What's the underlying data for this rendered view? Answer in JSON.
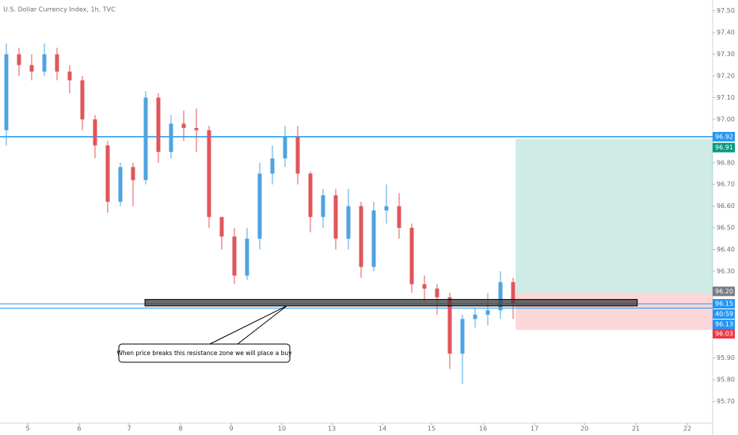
{
  "chart_data": {
    "type": "candlestick",
    "title": "U.S. Dollar Currency Index, 1h, TVC",
    "up_color": "#4fa3e0",
    "down_color": "#e0565b",
    "candles": {
      "open": [
        96.95,
        97.3,
        97.25,
        97.22,
        97.3,
        97.22,
        97.18,
        97.0,
        96.88,
        96.62,
        96.78,
        96.72,
        97.1,
        96.85,
        96.98,
        96.96,
        96.95,
        96.55,
        96.46,
        96.28,
        96.45,
        96.75,
        96.82,
        96.92,
        96.75,
        96.55,
        96.65,
        96.45,
        96.6,
        96.32,
        96.58,
        96.6,
        96.5,
        96.24,
        96.22,
        96.18,
        95.92,
        96.08,
        96.1,
        96.12,
        96.25
      ],
      "high": [
        97.35,
        97.33,
        97.3,
        97.35,
        97.33,
        97.25,
        97.2,
        97.02,
        96.9,
        96.8,
        96.8,
        97.13,
        97.12,
        97.02,
        97.04,
        97.05,
        96.97,
        96.55,
        96.5,
        96.5,
        96.8,
        96.88,
        96.97,
        96.97,
        96.76,
        96.68,
        96.68,
        96.68,
        96.62,
        96.62,
        96.7,
        96.66,
        96.52,
        96.28,
        96.24,
        96.2,
        96.1,
        96.13,
        96.2,
        96.3,
        96.27
      ],
      "low": [
        96.88,
        97.2,
        97.18,
        97.2,
        97.18,
        97.12,
        96.95,
        96.82,
        96.57,
        96.6,
        96.6,
        96.7,
        96.8,
        96.82,
        96.9,
        96.85,
        96.5,
        96.4,
        96.24,
        96.26,
        96.4,
        96.7,
        96.78,
        96.7,
        96.48,
        96.5,
        96.4,
        96.4,
        96.27,
        96.3,
        96.52,
        96.45,
        96.2,
        96.16,
        96.1,
        95.85,
        95.78,
        96.04,
        96.05,
        96.08,
        96.08
      ],
      "close": [
        97.3,
        97.25,
        97.22,
        97.3,
        97.22,
        97.18,
        97.0,
        96.88,
        96.62,
        96.78,
        96.72,
        97.1,
        96.85,
        96.98,
        96.96,
        96.95,
        96.55,
        96.46,
        96.28,
        96.45,
        96.75,
        96.82,
        96.92,
        96.75,
        96.55,
        96.65,
        96.45,
        96.6,
        96.32,
        96.58,
        96.6,
        96.5,
        96.24,
        96.22,
        96.18,
        95.92,
        96.08,
        96.1,
        96.12,
        96.25,
        96.15
      ]
    },
    "ylim": [
      95.6,
      97.55
    ],
    "yticks": [
      {
        "value": 97.5,
        "label": "97.50"
      },
      {
        "value": 97.4,
        "label": "97.40"
      },
      {
        "value": 97.3,
        "label": "97.30"
      },
      {
        "value": 97.2,
        "label": "97.20"
      },
      {
        "value": 97.1,
        "label": "97.10"
      },
      {
        "value": 97.0,
        "label": "97.00"
      },
      {
        "value": 96.8,
        "label": "96.80"
      },
      {
        "value": 96.7,
        "label": "96.70"
      },
      {
        "value": 96.6,
        "label": "96.60"
      },
      {
        "value": 96.5,
        "label": "96.50"
      },
      {
        "value": 96.4,
        "label": "96.40"
      },
      {
        "value": 96.3,
        "label": "96.30"
      },
      {
        "value": 95.9,
        "label": "95.90"
      },
      {
        "value": 95.8,
        "label": "95.80"
      },
      {
        "value": 95.7,
        "label": "95.70"
      }
    ],
    "xlim": [
      0,
      56.25
    ],
    "xticks": [
      {
        "value": 2.19,
        "label": "5"
      },
      {
        "value": 6.25,
        "label": "6"
      },
      {
        "value": 10.19,
        "label": "7"
      },
      {
        "value": 14.25,
        "label": "8"
      },
      {
        "value": 18.25,
        "label": "9"
      },
      {
        "value": 22.25,
        "label": "10"
      },
      {
        "value": 26.19,
        "label": "13"
      },
      {
        "value": 30.19,
        "label": "14"
      },
      {
        "value": 34.06,
        "label": "15"
      },
      {
        "value": 38.13,
        "label": "16"
      },
      {
        "value": 42.19,
        "label": "17"
      },
      {
        "value": 46.13,
        "label": "20"
      },
      {
        "value": 50.19,
        "label": "21"
      },
      {
        "value": 54.25,
        "label": "22"
      }
    ],
    "levels": [
      {
        "value": 96.92,
        "color": "#2196f3"
      },
      {
        "value": 96.15,
        "color": "#2196f3"
      },
      {
        "value": 96.13,
        "color": "#2196f3"
      }
    ],
    "countdown": {
      "label": "40:59",
      "color": "#2196f3"
    },
    "position": {
      "target": {
        "value": 96.91,
        "color": "#089981"
      },
      "entry": {
        "value": 96.2,
        "label": "96.20",
        "color": "#787b86"
      },
      "stop": {
        "value": 96.03,
        "color": "#f23645"
      },
      "x_start": 40.7
    },
    "zone": {
      "top": 96.17,
      "bottom": 96.14,
      "x_start": 11.44,
      "x_end": 50.3
    },
    "annotation": "When price breaks this resistance zone we will place a buy"
  }
}
